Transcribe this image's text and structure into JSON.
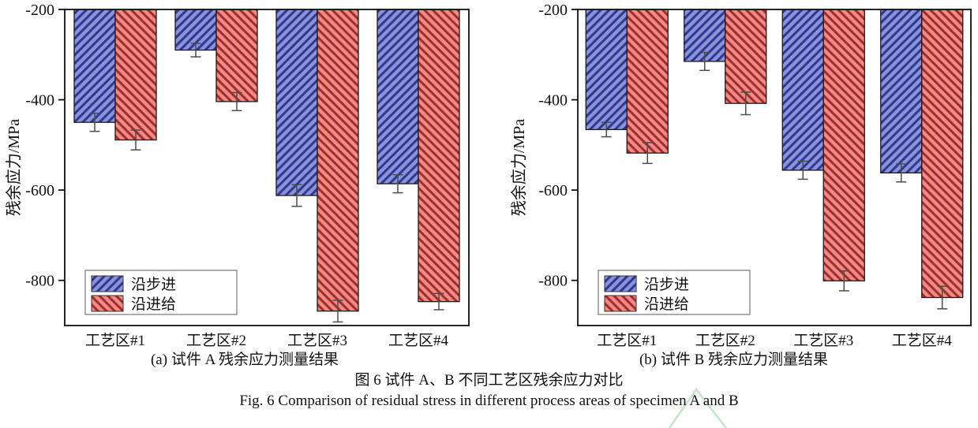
{
  "figure": {
    "caption_a": "(a) 试件 A 残余应力测量结果",
    "caption_b": "(b) 试件 B 残余应力测量结果",
    "title_cn": "图 6  试件 A、B 不同工艺区残余应力对比",
    "title_en": "Fig. 6 Comparison of residual stress in different process areas of specimen A and B"
  },
  "colors": {
    "axis": "#111111",
    "error_bar": "#4d4d4d",
    "legend_border": "#777777",
    "watermark_green": "#b9e2b9"
  },
  "chart_data": [
    {
      "type": "bar",
      "panel": "a",
      "title": "(a) 试件 A 残余应力测量结果",
      "categories": [
        "工艺区#1",
        "工艺区#2",
        "工艺区#3",
        "工艺区#4"
      ],
      "series": [
        {
          "name": "沿步进",
          "hatch": "/",
          "fill": "#8c94d7",
          "hatch_color": "#2c3a96",
          "values": [
            -450,
            -290,
            -612,
            -586
          ],
          "errors": [
            20,
            15,
            24,
            20
          ]
        },
        {
          "name": "沿进给",
          "hatch": "\\",
          "fill": "#ee8d86",
          "hatch_color": "#a62b2e",
          "values": [
            -489,
            -404,
            -868,
            -847
          ],
          "errors": [
            22,
            20,
            24,
            18
          ]
        }
      ],
      "xlabel": "",
      "ylabel": "残余应力/MPa",
      "ylim": [
        -900,
        -200
      ],
      "yticks": [
        -200,
        -400,
        -600,
        -800
      ],
      "legend_position": "lower left",
      "grid": false
    },
    {
      "type": "bar",
      "panel": "b",
      "title": "(b) 试件 B 残余应力测量结果",
      "categories": [
        "工艺区#1",
        "工艺区#2",
        "工艺区#3",
        "工艺区#4"
      ],
      "series": [
        {
          "name": "沿步进",
          "hatch": "/",
          "fill": "#8c94d7",
          "hatch_color": "#2c3a96",
          "values": [
            -466,
            -315,
            -556,
            -562
          ],
          "errors": [
            16,
            20,
            20,
            20
          ]
        },
        {
          "name": "沿进给",
          "hatch": "\\",
          "fill": "#ee8d86",
          "hatch_color": "#a62b2e",
          "values": [
            -518,
            -408,
            -801,
            -838
          ],
          "errors": [
            23,
            25,
            22,
            25
          ]
        }
      ],
      "xlabel": "",
      "ylabel": "残余应力/MPa",
      "ylim": [
        -900,
        -200
      ],
      "yticks": [
        -200,
        -400,
        -600,
        -800
      ],
      "legend_position": "lower left",
      "grid": false
    }
  ]
}
